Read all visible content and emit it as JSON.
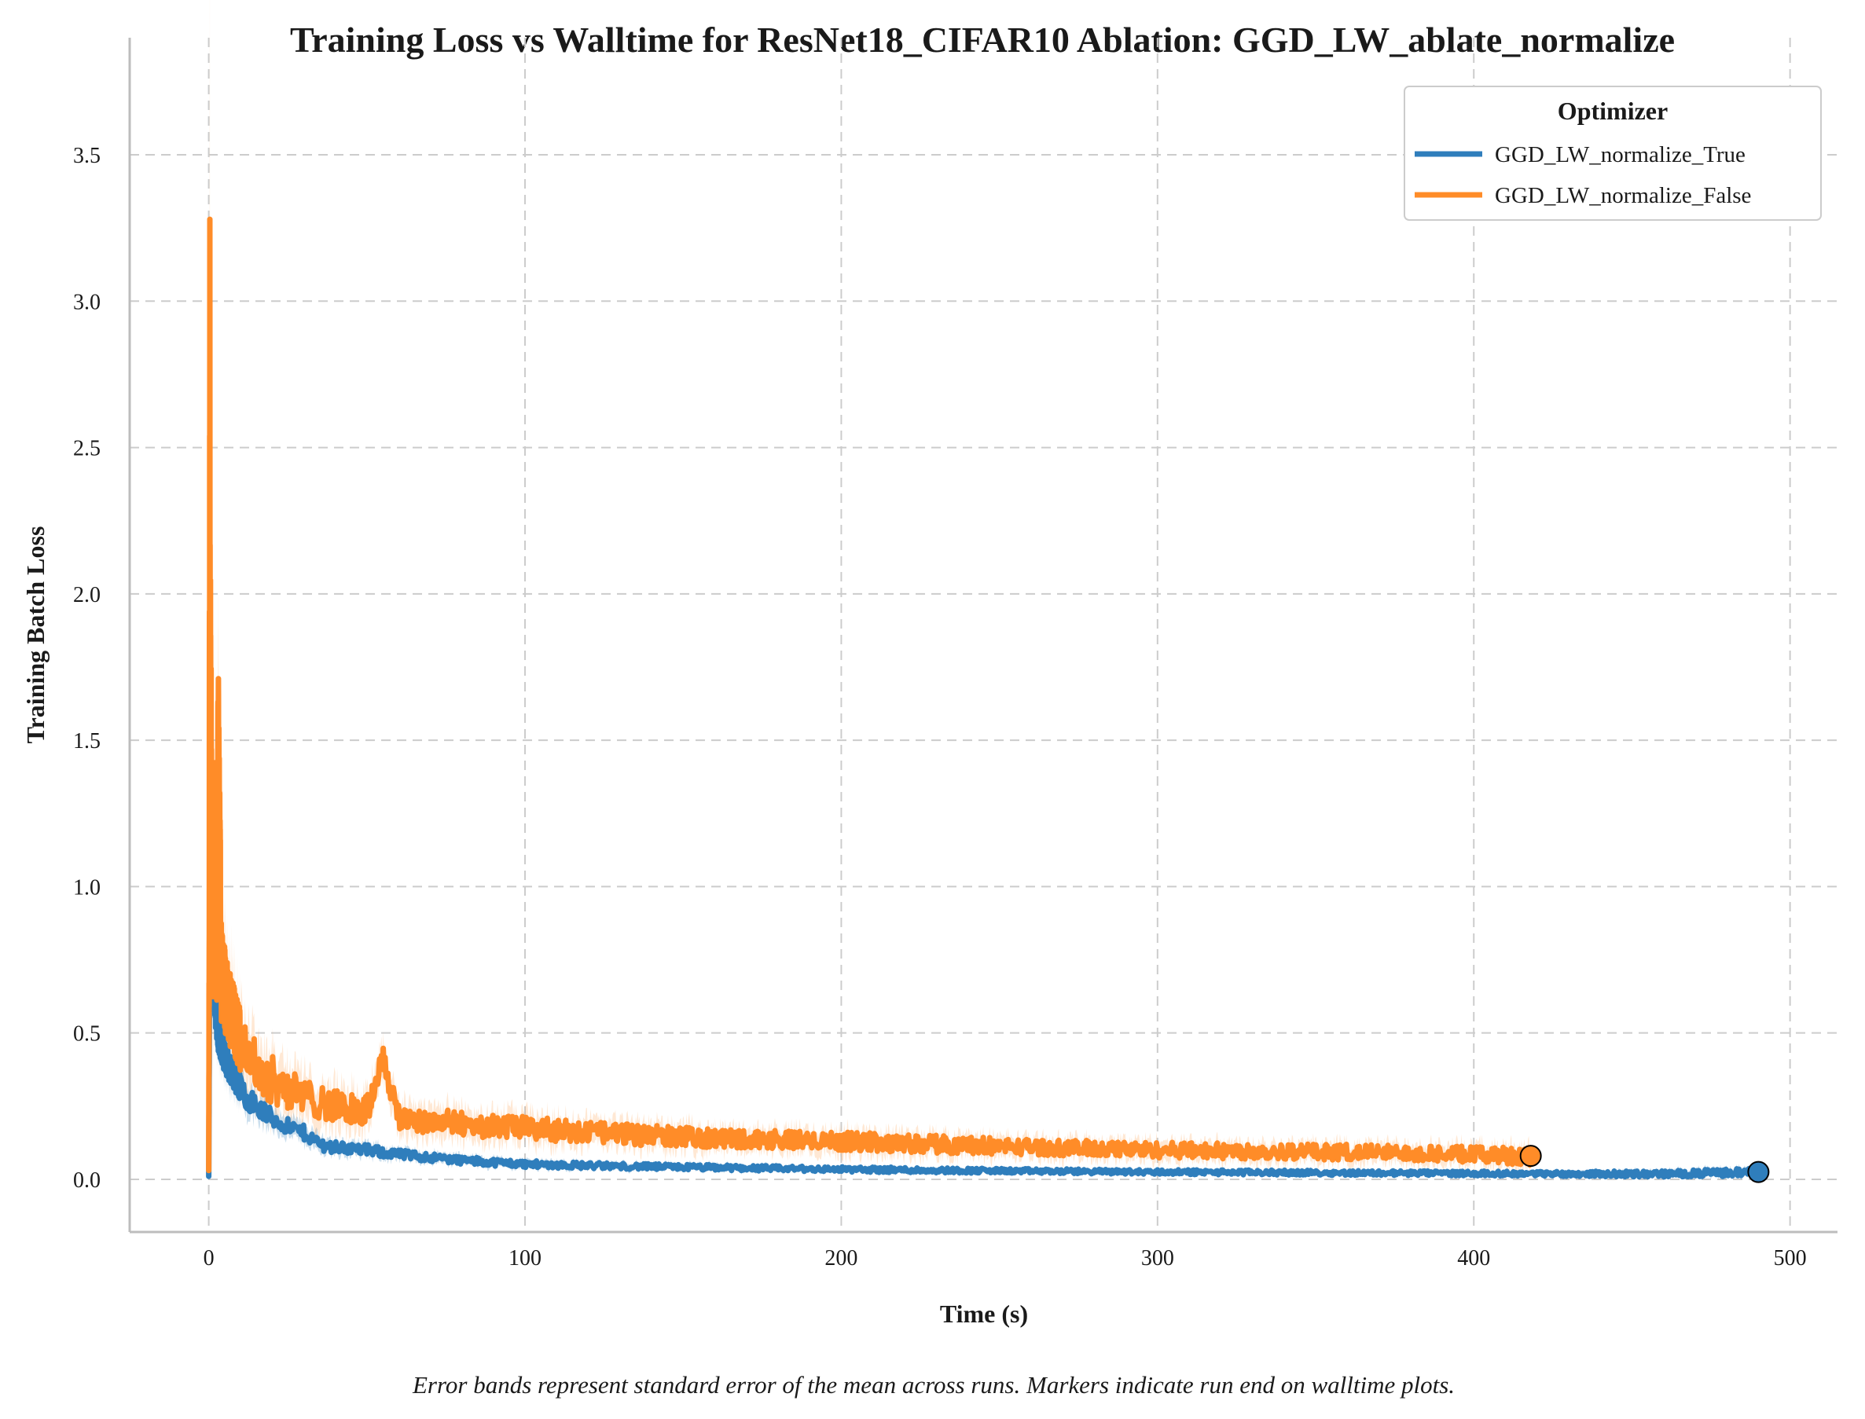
{
  "chart_data": {
    "type": "line",
    "title": "Training Loss vs Walltime for ResNet18_CIFAR10 Ablation: GGD_LW_ablate_normalize",
    "xlabel": "Time (s)",
    "ylabel": "Training Batch Loss",
    "caption": "Error bands represent standard error of the mean across runs. Markers indicate run end on walltime plots.",
    "xlim": [
      -25,
      515
    ],
    "ylim": [
      -0.18,
      3.9
    ],
    "x_ticks": [
      0,
      100,
      200,
      300,
      400,
      500
    ],
    "x_tick_labels": [
      "0",
      "100",
      "200",
      "300",
      "400",
      "500"
    ],
    "y_ticks": [
      0.0,
      0.5,
      1.0,
      1.5,
      2.0,
      2.5,
      3.0,
      3.5
    ],
    "y_tick_labels": [
      "0.0",
      "0.5",
      "1.0",
      "1.5",
      "2.0",
      "2.5",
      "3.0",
      "3.5"
    ],
    "grid": true,
    "legend": {
      "title": "Optimizer",
      "position": "top-right"
    },
    "series": [
      {
        "name": "GGD_LW_normalize_True",
        "color": "#2f7ebc",
        "x": [
          0,
          0.5,
          1,
          2,
          3,
          5,
          8,
          12,
          16,
          20,
          25,
          30,
          35,
          40,
          50,
          60,
          70,
          80,
          90,
          100,
          120,
          140,
          160,
          180,
          200,
          230,
          260,
          300,
          340,
          380,
          420,
          460,
          490
        ],
        "y": [
          0.01,
          1.2,
          0.75,
          0.6,
          0.5,
          0.42,
          0.35,
          0.28,
          0.24,
          0.21,
          0.18,
          0.16,
          0.12,
          0.11,
          0.1,
          0.085,
          0.075,
          0.065,
          0.058,
          0.052,
          0.047,
          0.043,
          0.04,
          0.037,
          0.034,
          0.031,
          0.028,
          0.025,
          0.023,
          0.021,
          0.019,
          0.018,
          0.025
        ],
        "sem": [
          0.0,
          0.2,
          0.12,
          0.08,
          0.07,
          0.06,
          0.05,
          0.045,
          0.04,
          0.035,
          0.03,
          0.028,
          0.025,
          0.022,
          0.02,
          0.018,
          0.016,
          0.015,
          0.014,
          0.013,
          0.012,
          0.011,
          0.011,
          0.01,
          0.01,
          0.01,
          0.009,
          0.009,
          0.009,
          0.009,
          0.009,
          0.012,
          0.015
        ],
        "end": {
          "x": 490,
          "y": 0.025
        }
      },
      {
        "name": "GGD_LW_normalize_False",
        "color": "#ff8c28",
        "x": [
          0,
          0.3,
          0.6,
          1,
          1.5,
          2,
          2.5,
          3,
          4,
          6,
          10,
          15,
          20,
          25,
          30,
          40,
          50,
          55,
          60,
          70,
          80,
          90,
          100,
          120,
          140,
          160,
          180,
          200,
          230,
          260,
          300,
          340,
          380,
          400,
          418
        ],
        "y": [
          0.03,
          2.4,
          1.6,
          1.0,
          0.8,
          1.2,
          0.7,
          1.58,
          0.7,
          0.6,
          0.48,
          0.38,
          0.34,
          0.31,
          0.28,
          0.25,
          0.23,
          0.42,
          0.21,
          0.2,
          0.19,
          0.18,
          0.175,
          0.16,
          0.15,
          0.14,
          0.135,
          0.13,
          0.12,
          0.11,
          0.1,
          0.095,
          0.09,
          0.085,
          0.08
        ],
        "sem": [
          0.0,
          1.3,
          0.5,
          0.3,
          0.25,
          0.3,
          0.2,
          0.25,
          0.18,
          0.15,
          0.12,
          0.1,
          0.09,
          0.08,
          0.07,
          0.06,
          0.06,
          0.05,
          0.05,
          0.05,
          0.045,
          0.045,
          0.045,
          0.04,
          0.04,
          0.035,
          0.035,
          0.035,
          0.035,
          0.03,
          0.03,
          0.03,
          0.03,
          0.03,
          0.035
        ],
        "end": {
          "x": 418,
          "y": 0.08
        }
      }
    ]
  }
}
